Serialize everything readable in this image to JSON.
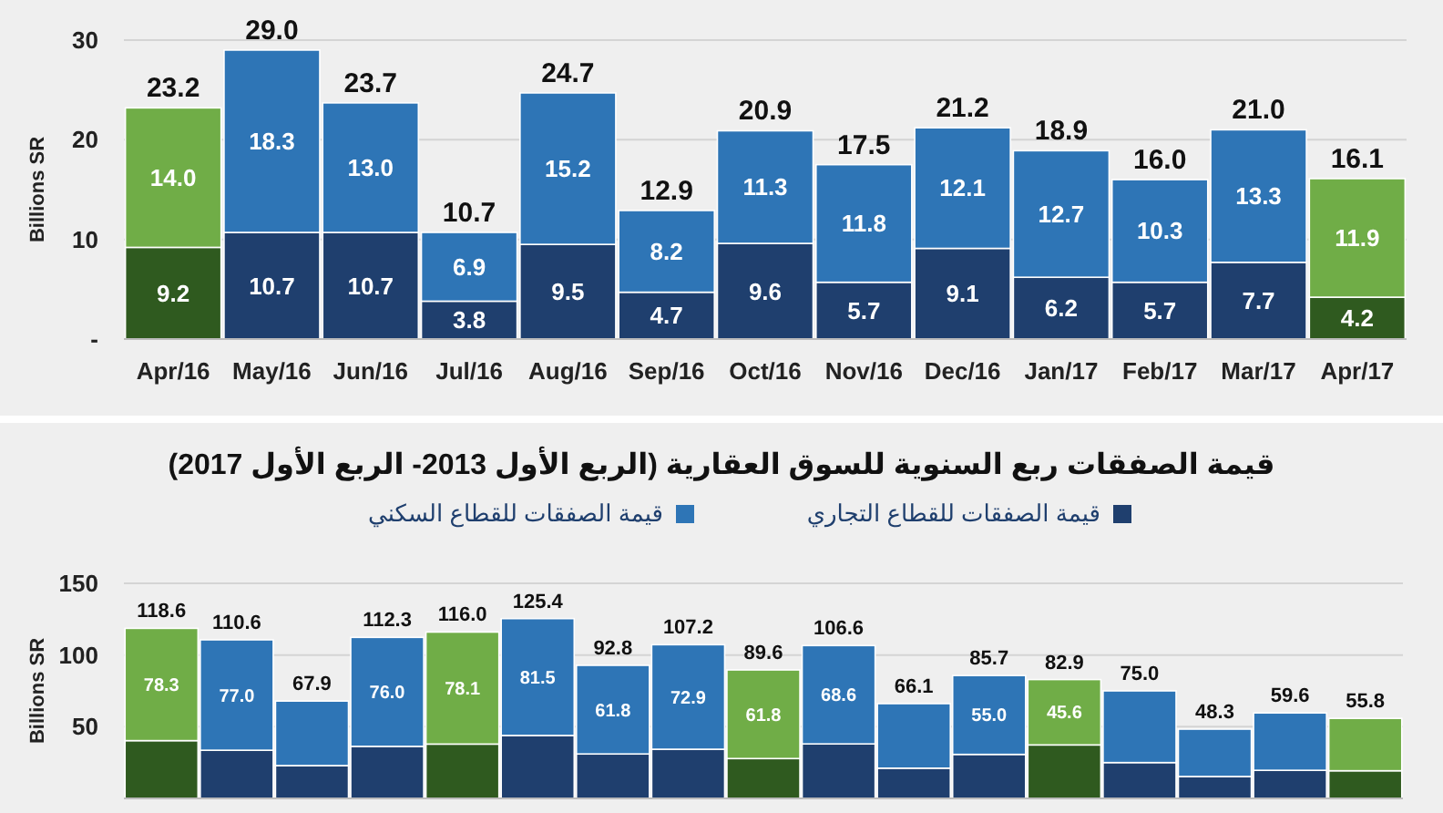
{
  "chart_data": [
    {
      "type": "bar",
      "stacked": true,
      "ylabel": "Billions SR",
      "categories": [
        "Apr/16",
        "May/16",
        "Jun/16",
        "Jul/16",
        "Aug/16",
        "Sep/16",
        "Oct/16",
        "Nov/16",
        "Dec/16",
        "Jan/17",
        "Feb/17",
        "Mar/17",
        "Apr/17"
      ],
      "series": [
        {
          "colors": [
            "#2f5a1f",
            "#1f3f6e",
            "#1f3f6e",
            "#1f3f6e",
            "#1f3f6e",
            "#1f3f6e",
            "#1f3f6e",
            "#1f3f6e",
            "#1f3f6e",
            "#1f3f6e",
            "#1f3f6e",
            "#1f3f6e",
            "#2f5a1f"
          ],
          "values": [
            9.2,
            10.7,
            10.7,
            3.8,
            9.5,
            4.7,
            9.6,
            5.7,
            9.1,
            6.2,
            5.7,
            7.7,
            4.2
          ],
          "value_labels": [
            "9.2",
            "10.7",
            "10.7",
            "3.8",
            "9.5",
            "4.7",
            "9.6",
            "5.7",
            "9.1",
            "6.2",
            "5.7",
            "7.7",
            "4.2"
          ]
        },
        {
          "colors": [
            "#70ad47",
            "#2e75b6",
            "#2e75b6",
            "#2e75b6",
            "#2e75b6",
            "#2e75b6",
            "#2e75b6",
            "#2e75b6",
            "#2e75b6",
            "#2e75b6",
            "#2e75b6",
            "#2e75b6",
            "#70ad47"
          ],
          "values": [
            14.0,
            18.3,
            13.0,
            6.9,
            15.2,
            8.2,
            11.3,
            11.8,
            12.1,
            12.7,
            10.3,
            13.3,
            11.9
          ],
          "value_labels": [
            "14.0",
            "18.3",
            "13.0",
            "6.9",
            "15.2",
            "8.2",
            "11.3",
            "11.8",
            "12.1",
            "12.7",
            "10.3",
            "13.3",
            "11.9"
          ]
        }
      ],
      "totals": [
        "23.2",
        "29.0",
        "23.7",
        "10.7",
        "24.7",
        "12.9",
        "20.9",
        "17.5",
        "21.2",
        "18.9",
        "16.0",
        "21.0",
        "16.1"
      ],
      "ylim": [
        0,
        30
      ],
      "yticks": [
        {
          "value": 0,
          "label": "-"
        },
        10,
        20,
        30
      ],
      "grid": "y"
    },
    {
      "type": "bar",
      "stacked": true,
      "title": "قيمة الصفقات ربع السنوية للسوق العقارية (الربع الأول 2013- الربع الأول 2017)",
      "ylabel": "Billions SR",
      "legend": "top",
      "categories": [
        null,
        null,
        null,
        null,
        null,
        null,
        null,
        null,
        null,
        null,
        null,
        null,
        null,
        null,
        null,
        null,
        null
      ],
      "series": [
        {
          "name": "قيمة الصفقات للقطاع التجاري",
          "color": "#1f3f6e",
          "colors": [
            "#2f5a1f",
            "#1f3f6e",
            "#1f3f6e",
            "#1f3f6e",
            "#2f5a1f",
            "#1f3f6e",
            "#1f3f6e",
            "#1f3f6e",
            "#2f5a1f",
            "#1f3f6e",
            "#1f3f6e",
            "#1f3f6e",
            "#2f5a1f",
            "#1f3f6e",
            "#1f3f6e",
            "#1f3f6e",
            "#2f5a1f"
          ],
          "values": [
            40.3,
            33.6,
            22.9,
            36.3,
            37.9,
            43.9,
            31.0,
            34.3,
            27.8,
            38.0,
            21.1,
            30.7,
            37.3,
            25.0,
            15.3,
            19.6,
            19.3
          ]
        },
        {
          "name": "قيمة الصفقات للقطاع السكني",
          "color": "#2e75b6",
          "colors": [
            "#70ad47",
            "#2e75b6",
            "#2e75b6",
            "#2e75b6",
            "#70ad47",
            "#2e75b6",
            "#2e75b6",
            "#2e75b6",
            "#70ad47",
            "#2e75b6",
            "#2e75b6",
            "#2e75b6",
            "#70ad47",
            "#2e75b6",
            "#2e75b6",
            "#2e75b6",
            "#70ad47"
          ],
          "values": [
            78.3,
            77.0,
            45.0,
            76.0,
            78.1,
            81.5,
            61.8,
            72.9,
            61.8,
            68.6,
            45.0,
            55.0,
            45.6,
            50.0,
            33.0,
            40.0,
            36.5
          ],
          "value_labels": [
            "78.3",
            "77.0",
            null,
            "76.0",
            "78.1",
            "81.5",
            "61.8",
            "72.9",
            "61.8",
            "68.6",
            null,
            "55.0",
            "45.6",
            null,
            null,
            null,
            null
          ]
        }
      ],
      "totals": [
        "118.6",
        "110.6",
        "67.9",
        "112.3",
        "116.0",
        "125.4",
        "92.8",
        "107.2",
        "89.6",
        "106.6",
        "66.1",
        "85.7",
        "82.9",
        "75.0",
        "48.3",
        "59.6",
        "55.8"
      ],
      "ylim": [
        0,
        150
      ],
      "yticks": [
        50,
        100,
        150
      ],
      "grid": "y"
    }
  ]
}
